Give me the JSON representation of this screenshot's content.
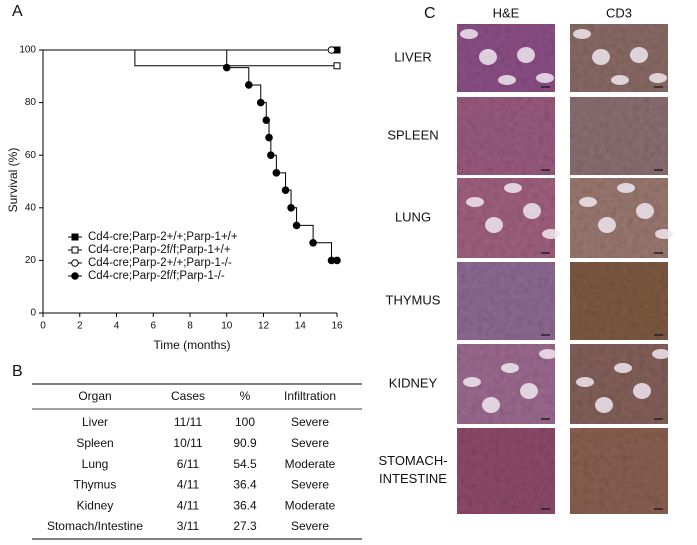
{
  "panel_labels": [
    "A",
    "B",
    "C"
  ],
  "chart_data": {
    "type": "step",
    "x_label": "Time (months)",
    "y_label": "Survival (%)",
    "xlim": [
      0,
      16
    ],
    "xticks": [
      0,
      2,
      4,
      6,
      8,
      10,
      12,
      14,
      16
    ],
    "ylim": [
      0,
      100
    ],
    "yticks": [
      0,
      20,
      40,
      60,
      80,
      100
    ],
    "series": [
      {
        "name": "Cd4-cre;Parp-2+/+;Parp-1+/+",
        "color": "#000000",
        "marker": "square",
        "filled": true,
        "x": [
          0,
          16
        ],
        "values": [
          100,
          100
        ],
        "markers": [
          false,
          true
        ]
      },
      {
        "name": "Cd4-cre;Parp-2f/f;Parp-1+/+",
        "color": "#000000",
        "marker": "square",
        "filled": false,
        "x": [
          0,
          5,
          16
        ],
        "values": [
          100,
          94,
          94
        ],
        "markers": [
          false,
          false,
          true
        ]
      },
      {
        "name": "Cd4-cre;Parp-2+/+;Parp-1-/-",
        "color": "#000000",
        "marker": "circle",
        "filled": false,
        "x": [
          0,
          15.7
        ],
        "values": [
          100,
          100
        ],
        "markers": [
          false,
          true
        ]
      },
      {
        "name": "Cd4-cre;Parp-2f/f;Parp-1-/-",
        "color": "#000000",
        "marker": "circle",
        "filled": true,
        "x": [
          0,
          10,
          11.2,
          11.85,
          12.15,
          12.3,
          12.4,
          12.7,
          13.2,
          13.5,
          13.8,
          14.7,
          15.7,
          16
        ],
        "values": [
          100,
          93.3,
          86.7,
          80,
          73.3,
          66.7,
          60,
          53.3,
          46.7,
          40,
          33.3,
          26.7,
          20,
          20
        ],
        "markers": [
          false,
          true,
          true,
          true,
          true,
          true,
          true,
          true,
          true,
          true,
          true,
          true,
          true,
          true
        ]
      }
    ]
  },
  "table": {
    "header": [
      "Organ",
      "Cases",
      "%",
      "Infiltration"
    ],
    "rows": [
      [
        "Liver",
        "11/11",
        100,
        "Severe"
      ],
      [
        "Spleen",
        "10/11",
        90.9,
        "Severe"
      ],
      [
        "Lung",
        "6/11",
        54.5,
        "Moderate"
      ],
      [
        "Thymus",
        "4/11",
        36.4,
        "Severe"
      ],
      [
        "Kidney",
        "4/11",
        36.4,
        "Moderate"
      ],
      [
        "Stomach/Intestine",
        "3/11",
        27.3,
        "Severe"
      ]
    ]
  },
  "histology": {
    "columns": [
      "H&E",
      "CD3"
    ],
    "rows": [
      "LIVER",
      "SPLEEN",
      "LUNG",
      "THYMUS",
      "KIDNEY",
      "STOMACH-INTESTINE"
    ]
  }
}
